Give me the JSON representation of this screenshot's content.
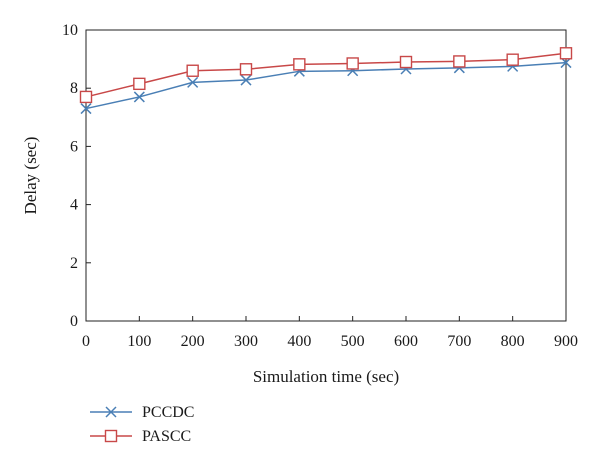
{
  "chart_data": {
    "type": "line",
    "x": [
      0,
      100,
      200,
      300,
      400,
      500,
      600,
      700,
      800,
      900
    ],
    "series": [
      {
        "name": "PCCDC",
        "values": [
          7.3,
          7.7,
          8.2,
          8.28,
          8.58,
          8.6,
          8.66,
          8.7,
          8.75,
          8.88
        ],
        "color": "#4a7fb5",
        "marker": "x"
      },
      {
        "name": "PASCC",
        "values": [
          7.7,
          8.15,
          8.6,
          8.65,
          8.82,
          8.85,
          8.9,
          8.92,
          8.98,
          9.2
        ],
        "color": "#c84848",
        "marker": "square"
      }
    ],
    "title": "",
    "xlabel": "Simulation time (sec)",
    "ylabel": "Delay (sec)",
    "xlim": [
      0,
      900
    ],
    "ylim": [
      0,
      10
    ],
    "xticks": [
      "0",
      "100",
      "200",
      "300",
      "400",
      "500",
      "600",
      "700",
      "800",
      "900"
    ],
    "yticks": [
      "0",
      "2",
      "4",
      "6",
      "8",
      "10"
    ],
    "grid": false,
    "legend_position": "bottom-left"
  }
}
